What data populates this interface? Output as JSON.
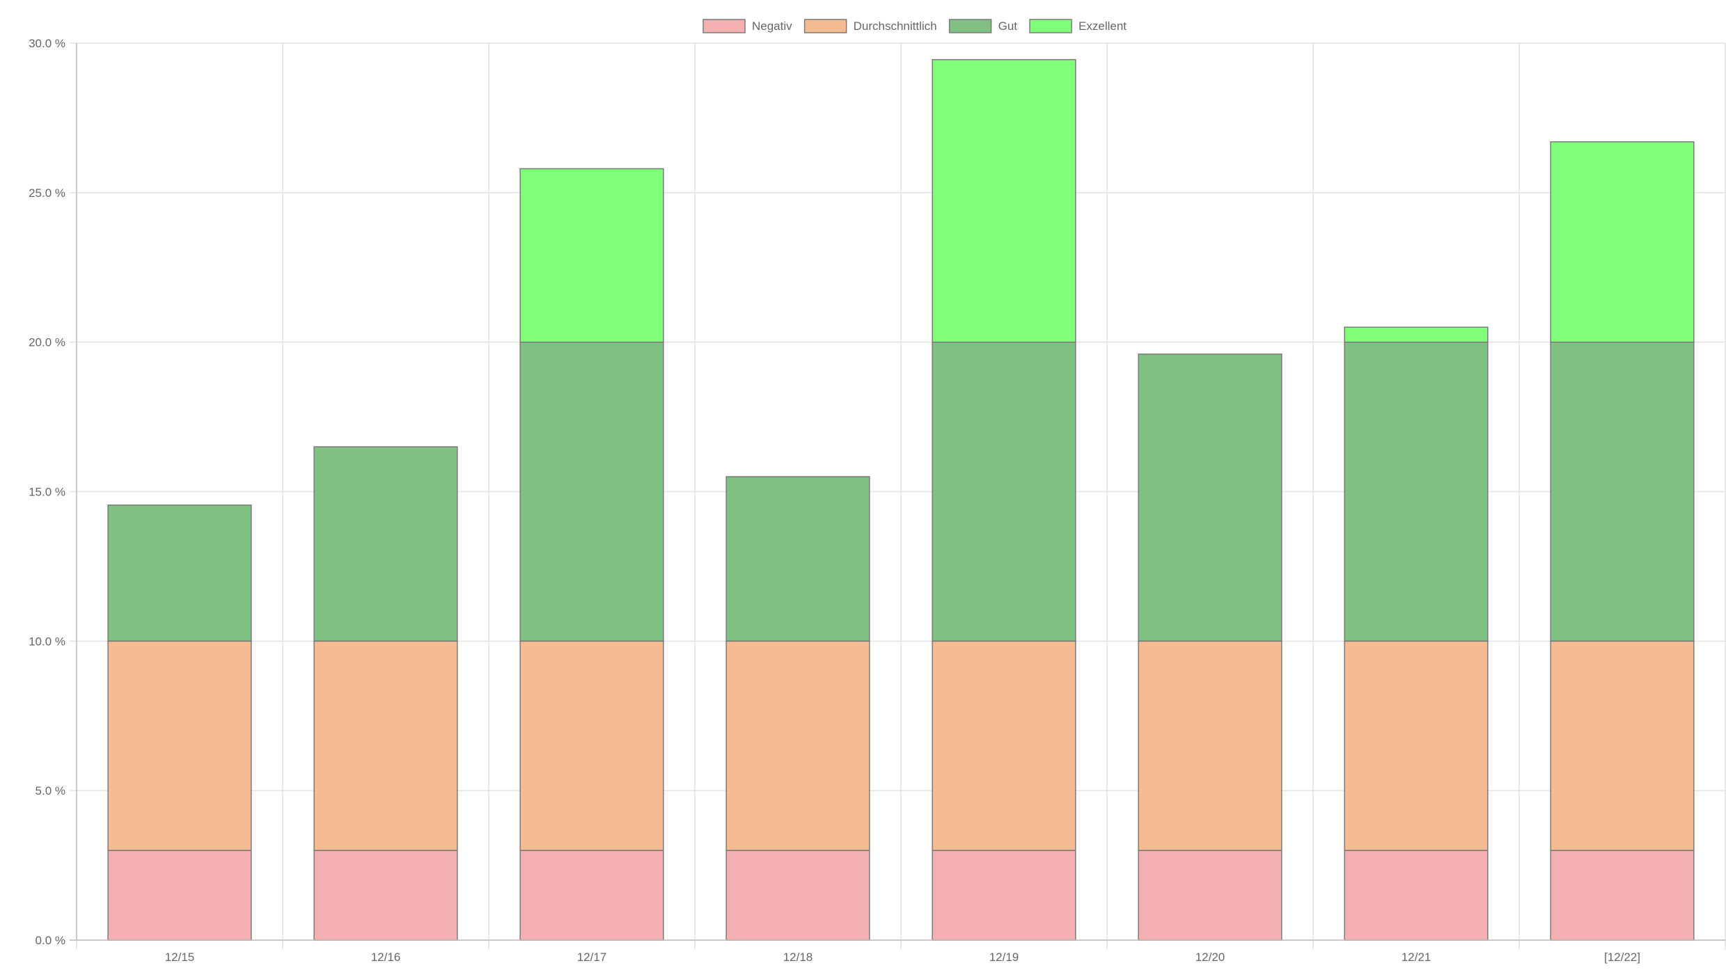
{
  "chart_data": {
    "type": "bar",
    "stacked": true,
    "categories": [
      "12/15",
      "12/16",
      "12/17",
      "12/18",
      "12/19",
      "12/20",
      "12/21",
      "[12/22]"
    ],
    "series": [
      {
        "name": "Negativ",
        "color": "#f4b0b0",
        "values": [
          3,
          3,
          3,
          3,
          3,
          3,
          3,
          3
        ]
      },
      {
        "name": "Durchschnittlich",
        "color": "#f4bc90",
        "values": [
          7,
          7,
          7,
          7,
          7,
          7,
          7,
          7
        ]
      },
      {
        "name": "Gut",
        "color": "#80c080",
        "values": [
          4.55,
          6.5,
          10,
          5.5,
          10,
          9.6,
          10,
          10
        ]
      },
      {
        "name": "Exzellent",
        "color": "#80ff7b",
        "values": [
          0,
          0,
          5.8,
          0,
          9.45,
          0,
          0.5,
          6.7
        ]
      }
    ],
    "ylim": [
      0,
      30
    ],
    "yticks": [
      "0.0 %",
      "5.0 %",
      "10.0 %",
      "15.0 %",
      "20.0 %",
      "25.0 %",
      "30.0 %"
    ],
    "ytick_values": [
      0,
      5,
      10,
      15,
      20,
      25,
      30
    ],
    "grid": true,
    "legend_position": "top",
    "title": "",
    "xlabel": "",
    "ylabel": ""
  }
}
